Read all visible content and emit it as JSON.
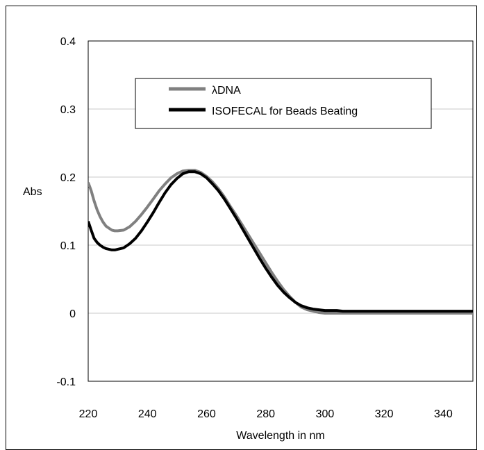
{
  "chart_data": {
    "type": "line",
    "title": "",
    "xlabel": "Wavelength in nm",
    "ylabel": "Abs",
    "xlim": [
      220,
      350
    ],
    "ylim": [
      -0.1,
      0.4
    ],
    "x_ticks": [
      "220",
      "240",
      "260",
      "280",
      "300",
      "320",
      "340"
    ],
    "y_ticks": [
      "-0.1",
      "0",
      "0.1",
      "0.2",
      "0.3",
      "0.4"
    ],
    "grid": "horizontal",
    "legend_position": "top-center",
    "series": [
      {
        "name": "λDNA",
        "color": "#808080",
        "x": [
          220,
          221,
          222,
          223,
          224,
          225,
          226,
          227,
          228,
          229,
          230,
          232,
          234,
          236,
          238,
          240,
          242,
          244,
          246,
          248,
          250,
          252,
          254,
          256,
          258,
          260,
          262,
          264,
          266,
          268,
          270,
          272,
          274,
          276,
          278,
          280,
          282,
          284,
          286,
          288,
          290,
          292,
          294,
          296,
          298,
          300,
          302,
          304,
          306,
          308,
          310,
          315,
          320,
          330,
          340,
          350
        ],
        "y": [
          0.192,
          0.18,
          0.165,
          0.152,
          0.142,
          0.134,
          0.128,
          0.125,
          0.122,
          0.121,
          0.121,
          0.122,
          0.127,
          0.135,
          0.145,
          0.156,
          0.168,
          0.18,
          0.19,
          0.199,
          0.205,
          0.209,
          0.21,
          0.21,
          0.207,
          0.201,
          0.193,
          0.183,
          0.171,
          0.157,
          0.144,
          0.13,
          0.116,
          0.102,
          0.088,
          0.074,
          0.06,
          0.047,
          0.035,
          0.025,
          0.016,
          0.009,
          0.005,
          0.003,
          0.001,
          0.0,
          0.0,
          0.0,
          0.0,
          0.0,
          0.0,
          0.0,
          0.0,
          0.0,
          0.0,
          0.0
        ]
      },
      {
        "name": "ISOFECAL for Beads Beating",
        "color": "#000000",
        "x": [
          220,
          221,
          222,
          223,
          224,
          225,
          226,
          227,
          228,
          229,
          230,
          232,
          234,
          236,
          238,
          240,
          242,
          244,
          246,
          248,
          250,
          252,
          254,
          256,
          258,
          260,
          262,
          264,
          266,
          268,
          270,
          272,
          274,
          276,
          278,
          280,
          282,
          284,
          286,
          288,
          290,
          292,
          294,
          296,
          298,
          300,
          302,
          304,
          306,
          308,
          310,
          315,
          320,
          330,
          340,
          350
        ],
        "y": [
          0.135,
          0.122,
          0.11,
          0.104,
          0.1,
          0.097,
          0.095,
          0.094,
          0.093,
          0.093,
          0.094,
          0.096,
          0.102,
          0.11,
          0.121,
          0.134,
          0.148,
          0.163,
          0.177,
          0.189,
          0.198,
          0.205,
          0.208,
          0.208,
          0.205,
          0.199,
          0.19,
          0.18,
          0.168,
          0.154,
          0.14,
          0.125,
          0.11,
          0.095,
          0.08,
          0.066,
          0.053,
          0.041,
          0.031,
          0.023,
          0.016,
          0.011,
          0.008,
          0.006,
          0.005,
          0.004,
          0.004,
          0.004,
          0.003,
          0.003,
          0.003,
          0.003,
          0.003,
          0.003,
          0.003,
          0.003
        ]
      }
    ]
  }
}
